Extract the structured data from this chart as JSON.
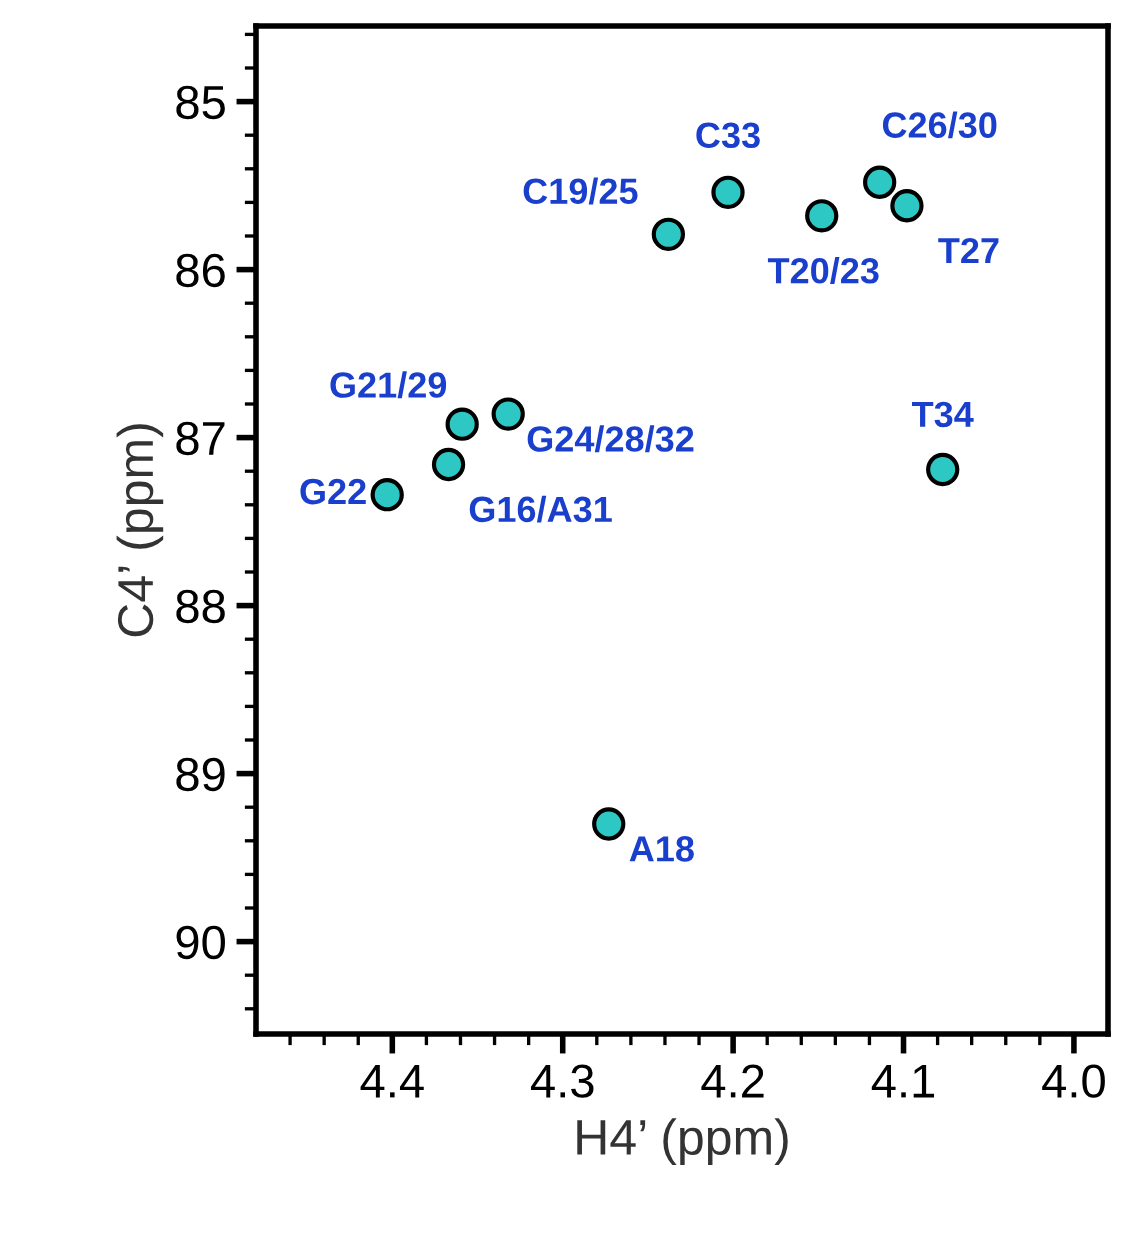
{
  "chart_data": {
    "type": "scatter",
    "xlabel": "H4’ (ppm)",
    "ylabel": "C4’ (ppm)",
    "xlim": [
      4.48,
      3.98
    ],
    "ylim": [
      90.55,
      84.55
    ],
    "xticks": [
      {
        "value": 4.46,
        "label": null
      },
      {
        "value": 4.44,
        "label": null
      },
      {
        "value": 4.42,
        "label": null
      },
      4.4,
      {
        "value": 4.38,
        "label": null
      },
      {
        "value": 4.36,
        "label": null
      },
      {
        "value": 4.34,
        "label": null
      },
      {
        "value": 4.32,
        "label": null
      },
      4.3,
      {
        "value": 4.28,
        "label": null
      },
      {
        "value": 4.26,
        "label": null
      },
      {
        "value": 4.24,
        "label": null
      },
      {
        "value": 4.22,
        "label": null
      },
      4.2,
      {
        "value": 4.18,
        "label": null
      },
      {
        "value": 4.16,
        "label": null
      },
      {
        "value": 4.14,
        "label": null
      },
      {
        "value": 4.12,
        "label": null
      },
      4.1,
      {
        "value": 4.08,
        "label": null
      },
      {
        "value": 4.06,
        "label": null
      },
      {
        "value": 4.04,
        "label": null
      },
      {
        "value": 4.02,
        "label": null
      },
      {
        "value": 4.0,
        "label": "4.0"
      }
    ],
    "yticks": [
      {
        "value": 84.6,
        "label": null
      },
      {
        "value": 84.8,
        "label": null
      },
      85,
      {
        "value": 85.2,
        "label": null
      },
      {
        "value": 85.4,
        "label": null
      },
      {
        "value": 85.6,
        "label": null
      },
      {
        "value": 85.8,
        "label": null
      },
      86,
      {
        "value": 86.2,
        "label": null
      },
      {
        "value": 86.4,
        "label": null
      },
      {
        "value": 86.6,
        "label": null
      },
      {
        "value": 86.8,
        "label": null
      },
      87,
      {
        "value": 87.2,
        "label": null
      },
      {
        "value": 87.4,
        "label": null
      },
      {
        "value": 87.6,
        "label": null
      },
      {
        "value": 87.8,
        "label": null
      },
      88,
      {
        "value": 88.2,
        "label": null
      },
      {
        "value": 88.4,
        "label": null
      },
      {
        "value": 88.6,
        "label": null
      },
      {
        "value": 88.8,
        "label": null
      },
      89,
      {
        "value": 89.2,
        "label": null
      },
      {
        "value": 89.4,
        "label": null
      },
      {
        "value": 89.6,
        "label": null
      },
      {
        "value": 89.8,
        "label": null
      },
      90,
      {
        "value": 90.2,
        "label": null
      },
      {
        "value": 90.4,
        "label": null
      }
    ],
    "marker": "circle",
    "grid": false,
    "series": [
      {
        "color": "#2ec8c4",
        "x": [
          4.238,
          4.203,
          4.148,
          4.114,
          4.098,
          4.359,
          4.332,
          4.367,
          4.403,
          4.077,
          4.273
        ],
        "values": [
          85.79,
          85.54,
          85.68,
          85.48,
          85.62,
          86.92,
          86.86,
          87.16,
          87.34,
          87.19,
          89.3
        ]
      }
    ],
    "annotations": [
      {
        "text": "C19/25",
        "x": 4.238,
        "y": 85.79
      },
      {
        "text": "C33",
        "x": 4.203,
        "y": 85.54
      },
      {
        "text": "T20/23",
        "x": 4.148,
        "y": 85.68
      },
      {
        "text": "C26/30",
        "x": 4.114,
        "y": 85.48
      },
      {
        "text": "T27",
        "x": 4.098,
        "y": 85.62
      },
      {
        "text": "G21/29",
        "x": 4.359,
        "y": 86.92
      },
      {
        "text": "G24/28/32",
        "x": 4.332,
        "y": 86.86
      },
      {
        "text": "G16/A31",
        "x": 4.367,
        "y": 87.16
      },
      {
        "text": "G22",
        "x": 4.403,
        "y": 87.34
      },
      {
        "text": "T34",
        "x": 4.077,
        "y": 87.19
      },
      {
        "text": "A18",
        "x": 4.273,
        "y": 89.3
      }
    ]
  }
}
